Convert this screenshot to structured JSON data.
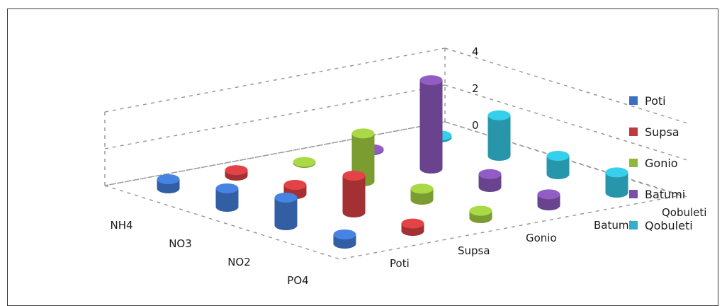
{
  "chart_data": {
    "type": "bar",
    "subtype": "3d-cylinder",
    "title": "",
    "categories": [
      "NH4",
      "NO3",
      "NO2",
      "PO4"
    ],
    "series": [
      {
        "name": "Poti",
        "color": "#3b6fc0",
        "values": [
          0.5,
          1.0,
          1.5,
          0.5
        ]
      },
      {
        "name": "Supsa",
        "color": "#c0393b",
        "values": [
          0.3,
          0.5,
          2.0,
          0.4
        ]
      },
      {
        "name": "Gonio",
        "color": "#8fb83a",
        "values": [
          0.05,
          2.6,
          0.6,
          0.4
        ]
      },
      {
        "name": "Batumi",
        "color": "#7b4fa6",
        "values": [
          0.05,
          4.8,
          0.7,
          0.6
        ]
      },
      {
        "name": "Qobuleti",
        "color": "#2fb0c8",
        "values": [
          0.1,
          2.2,
          1.0,
          1.1
        ]
      }
    ],
    "zlim": [
      0,
      4
    ],
    "zticks": [
      "0",
      "2",
      "4"
    ],
    "grid": true,
    "legend": "right"
  }
}
